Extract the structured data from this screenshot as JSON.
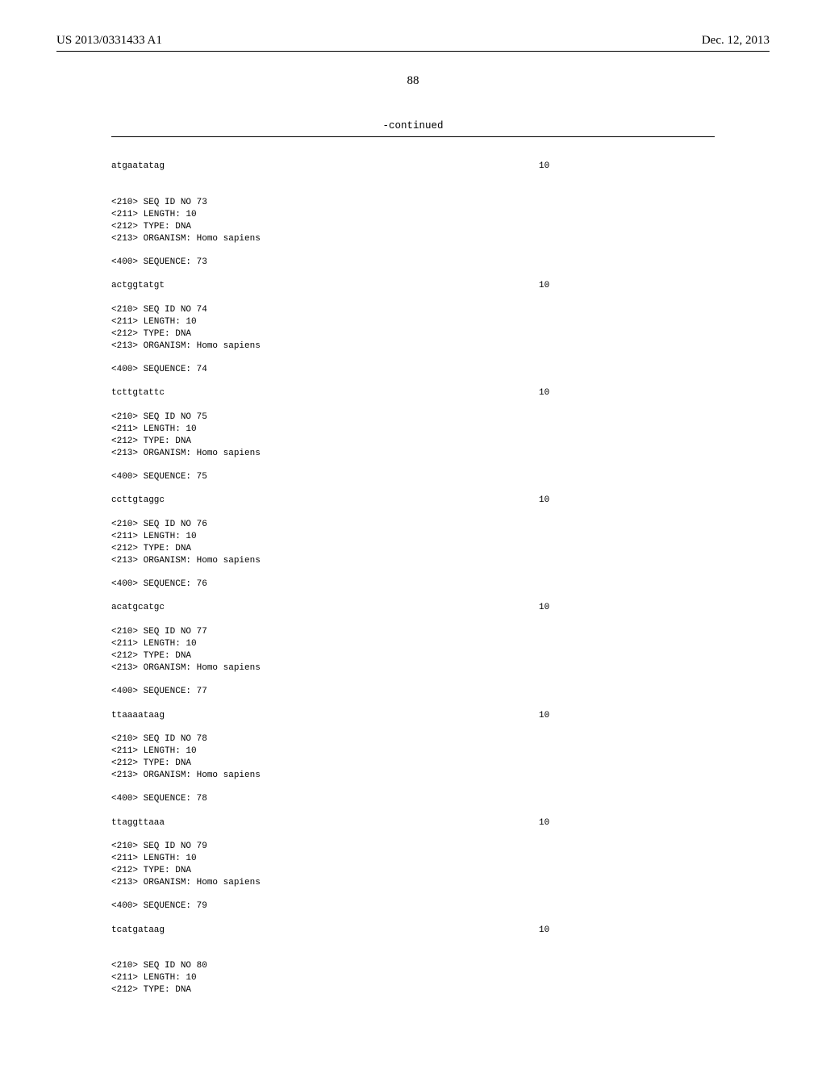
{
  "header": {
    "pubNumber": "US 2013/0331433 A1",
    "pubDate": "Dec. 12, 2013"
  },
  "pageNumber": "88",
  "continuedLabel": "-continued",
  "topSequence": {
    "data": "atgaatatag",
    "length": "10"
  },
  "sequences": [
    {
      "tags": [
        "<210> SEQ ID NO 73",
        "<211> LENGTH: 10",
        "<212> TYPE: DNA",
        "<213> ORGANISM: Homo sapiens"
      ],
      "seqTag": "<400> SEQUENCE: 73",
      "data": "actggtatgt",
      "length": "10"
    },
    {
      "tags": [
        "<210> SEQ ID NO 74",
        "<211> LENGTH: 10",
        "<212> TYPE: DNA",
        "<213> ORGANISM: Homo sapiens"
      ],
      "seqTag": "<400> SEQUENCE: 74",
      "data": "tcttgtattc",
      "length": "10"
    },
    {
      "tags": [
        "<210> SEQ ID NO 75",
        "<211> LENGTH: 10",
        "<212> TYPE: DNA",
        "<213> ORGANISM: Homo sapiens"
      ],
      "seqTag": "<400> SEQUENCE: 75",
      "data": "ccttgtaggc",
      "length": "10"
    },
    {
      "tags": [
        "<210> SEQ ID NO 76",
        "<211> LENGTH: 10",
        "<212> TYPE: DNA",
        "<213> ORGANISM: Homo sapiens"
      ],
      "seqTag": "<400> SEQUENCE: 76",
      "data": "acatgcatgc",
      "length": "10"
    },
    {
      "tags": [
        "<210> SEQ ID NO 77",
        "<211> LENGTH: 10",
        "<212> TYPE: DNA",
        "<213> ORGANISM: Homo sapiens"
      ],
      "seqTag": "<400> SEQUENCE: 77",
      "data": "ttaaaataag",
      "length": "10"
    },
    {
      "tags": [
        "<210> SEQ ID NO 78",
        "<211> LENGTH: 10",
        "<212> TYPE: DNA",
        "<213> ORGANISM: Homo sapiens"
      ],
      "seqTag": "<400> SEQUENCE: 78",
      "data": "ttaggttaaa",
      "length": "10"
    },
    {
      "tags": [
        "<210> SEQ ID NO 79",
        "<211> LENGTH: 10",
        "<212> TYPE: DNA",
        "<213> ORGANISM: Homo sapiens"
      ],
      "seqTag": "<400> SEQUENCE: 79",
      "data": "tcatgataag",
      "length": "10"
    }
  ],
  "partialSequence": {
    "tags": [
      "<210> SEQ ID NO 80",
      "<211> LENGTH: 10",
      "<212> TYPE: DNA"
    ]
  },
  "style": {
    "background": "#ffffff",
    "textColor": "#000000",
    "ruleColor": "#000000",
    "monoFont": "Courier New",
    "serifFont": "Times New Roman",
    "bodyFontSize": 11,
    "headerFontSize": 15
  }
}
